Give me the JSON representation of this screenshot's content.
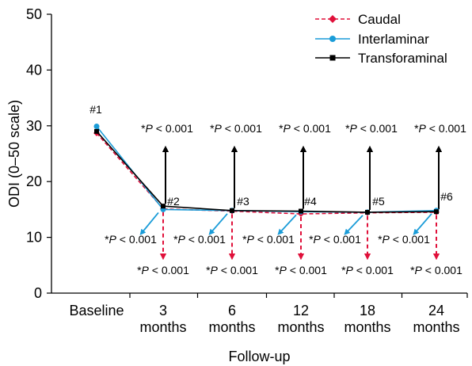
{
  "chart_data": {
    "type": "line",
    "title": "",
    "xlabel": "Follow-up",
    "ylabel": "ODI (0–50 scale)",
    "ylim": [
      0,
      50
    ],
    "yticks": [
      "0",
      "10",
      "20",
      "30",
      "40",
      "50"
    ],
    "categories": [
      [
        "Baseline"
      ],
      [
        "3",
        "months"
      ],
      [
        "6",
        "months"
      ],
      [
        "12",
        "months"
      ],
      [
        "18",
        "months"
      ],
      [
        "24",
        "months"
      ]
    ],
    "series": [
      {
        "name": "Caudal",
        "color": "#e0103a",
        "dashed": true,
        "marker": "diamond",
        "values": [
          28.7,
          15.1,
          14.7,
          14.2,
          14.4,
          14.5
        ]
      },
      {
        "name": "Interlaminar",
        "color": "#1a9cd8",
        "dashed": false,
        "marker": "circle",
        "values": [
          29.9,
          15.0,
          14.8,
          14.6,
          14.5,
          14.8
        ]
      },
      {
        "name": "Transforaminal",
        "color": "#000000",
        "dashed": false,
        "marker": "square",
        "values": [
          29.0,
          15.6,
          14.8,
          14.7,
          14.5,
          14.6
        ]
      }
    ],
    "legend": "top-right",
    "grid": false,
    "timepoint_labels": [
      "#1",
      "#2",
      "#3",
      "#4",
      "#5",
      "#6"
    ],
    "significance": {
      "transforaminal": [
        "*P < 0.001",
        "*P < 0.001",
        "*P < 0.001",
        "*P < 0.001",
        "*P < 0.001"
      ],
      "interlaminar": [
        "*P < 0.001",
        "*P < 0.001",
        "*P < 0.001",
        "*P < 0.001",
        "*P < 0.001"
      ],
      "caudal": [
        "*P < 0.001",
        "*P < 0.001",
        "*P < 0.001",
        "*P < 0.001",
        "*P < 0.001"
      ]
    }
  }
}
